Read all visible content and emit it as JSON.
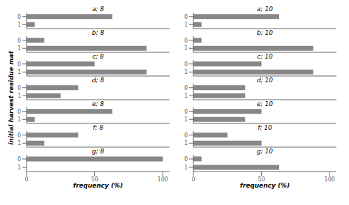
{
  "chart_data": [
    {
      "type": "bar",
      "orientation": "horizontal",
      "title": "a; 8",
      "ylabel": "initial harvest residue mat",
      "categories": [
        "0",
        "1"
      ],
      "values": [
        63,
        6
      ],
      "color": "#878787",
      "xlim": [
        0,
        105
      ],
      "xticks": [
        0,
        50,
        100
      ],
      "tick_labels": "y"
    },
    {
      "type": "bar",
      "orientation": "horizontal",
      "title": "a; 10",
      "categories": [
        "0",
        "1"
      ],
      "values": [
        63,
        6
      ],
      "color": "#878787",
      "xlim": [
        0,
        105
      ],
      "xticks": [
        0,
        50,
        100
      ],
      "tick_labels": "y"
    },
    {
      "type": "bar",
      "orientation": "horizontal",
      "title": "b; 8",
      "categories": [
        "0",
        "1"
      ],
      "values": [
        13,
        88
      ],
      "color": "#878787",
      "xlim": [
        0,
        105
      ],
      "xticks": [
        0,
        50,
        100
      ],
      "tick_labels": "y"
    },
    {
      "type": "bar",
      "orientation": "horizontal",
      "title": "b; 10",
      "categories": [
        "0",
        "1"
      ],
      "values": [
        6,
        88
      ],
      "color": "#878787",
      "xlim": [
        0,
        105
      ],
      "xticks": [
        0,
        50,
        100
      ],
      "tick_labels": "y"
    },
    {
      "type": "bar",
      "orientation": "horizontal",
      "title": "c; 8",
      "categories": [
        "0",
        "1"
      ],
      "values": [
        50,
        88
      ],
      "color": "#878787",
      "xlim": [
        0,
        105
      ],
      "xticks": [
        0,
        50,
        100
      ],
      "tick_labels": "y"
    },
    {
      "type": "bar",
      "orientation": "horizontal",
      "title": "c; 10",
      "categories": [
        "0",
        "1"
      ],
      "values": [
        50,
        88
      ],
      "color": "#878787",
      "xlim": [
        0,
        105
      ],
      "xticks": [
        0,
        50,
        100
      ],
      "tick_labels": "y"
    },
    {
      "type": "bar",
      "orientation": "horizontal",
      "title": "d; 8",
      "categories": [
        "0",
        "1"
      ],
      "values": [
        38,
        25
      ],
      "color": "#878787",
      "xlim": [
        0,
        105
      ],
      "xticks": [
        0,
        50,
        100
      ],
      "tick_labels": "y"
    },
    {
      "type": "bar",
      "orientation": "horizontal",
      "title": "d; 10",
      "categories": [
        "0",
        "1"
      ],
      "values": [
        38,
        38
      ],
      "color": "#878787",
      "xlim": [
        0,
        105
      ],
      "xticks": [
        0,
        50,
        100
      ],
      "tick_labels": "y"
    },
    {
      "type": "bar",
      "orientation": "horizontal",
      "title": "e; 8",
      "categories": [
        "0",
        "1"
      ],
      "values": [
        63,
        6
      ],
      "color": "#878787",
      "xlim": [
        0,
        105
      ],
      "xticks": [
        0,
        50,
        100
      ],
      "tick_labels": "y"
    },
    {
      "type": "bar",
      "orientation": "horizontal",
      "title": "e; 10",
      "categories": [
        "0",
        "1"
      ],
      "values": [
        50,
        38
      ],
      "color": "#878787",
      "xlim": [
        0,
        105
      ],
      "xticks": [
        0,
        50,
        100
      ],
      "tick_labels": "y"
    },
    {
      "type": "bar",
      "orientation": "horizontal",
      "title": "f; 8",
      "categories": [
        "0",
        "1"
      ],
      "values": [
        38,
        13
      ],
      "color": "#878787",
      "xlim": [
        0,
        105
      ],
      "xticks": [
        0,
        50,
        100
      ],
      "tick_labels": "y"
    },
    {
      "type": "bar",
      "orientation": "horizontal",
      "title": "f; 10",
      "categories": [
        "0",
        "1"
      ],
      "values": [
        25,
        50
      ],
      "color": "#878787",
      "xlim": [
        0,
        105
      ],
      "xticks": [
        0,
        50,
        100
      ],
      "tick_labels": "y"
    },
    {
      "type": "bar",
      "orientation": "horizontal",
      "title": "g; 8",
      "xlabel": "frequency (%)",
      "categories": [
        "0",
        "1"
      ],
      "values": [
        100,
        0
      ],
      "color": "#878787",
      "xlim": [
        0,
        105
      ],
      "xticks": [
        0,
        50,
        100
      ]
    },
    {
      "type": "bar",
      "orientation": "horizontal",
      "title": "g; 10",
      "xlabel": "frequency (%)",
      "categories": [
        "0",
        "1"
      ],
      "values": [
        6,
        63
      ],
      "color": "#878787",
      "xlim": [
        0,
        105
      ],
      "xticks": [
        0,
        50,
        100
      ]
    }
  ]
}
